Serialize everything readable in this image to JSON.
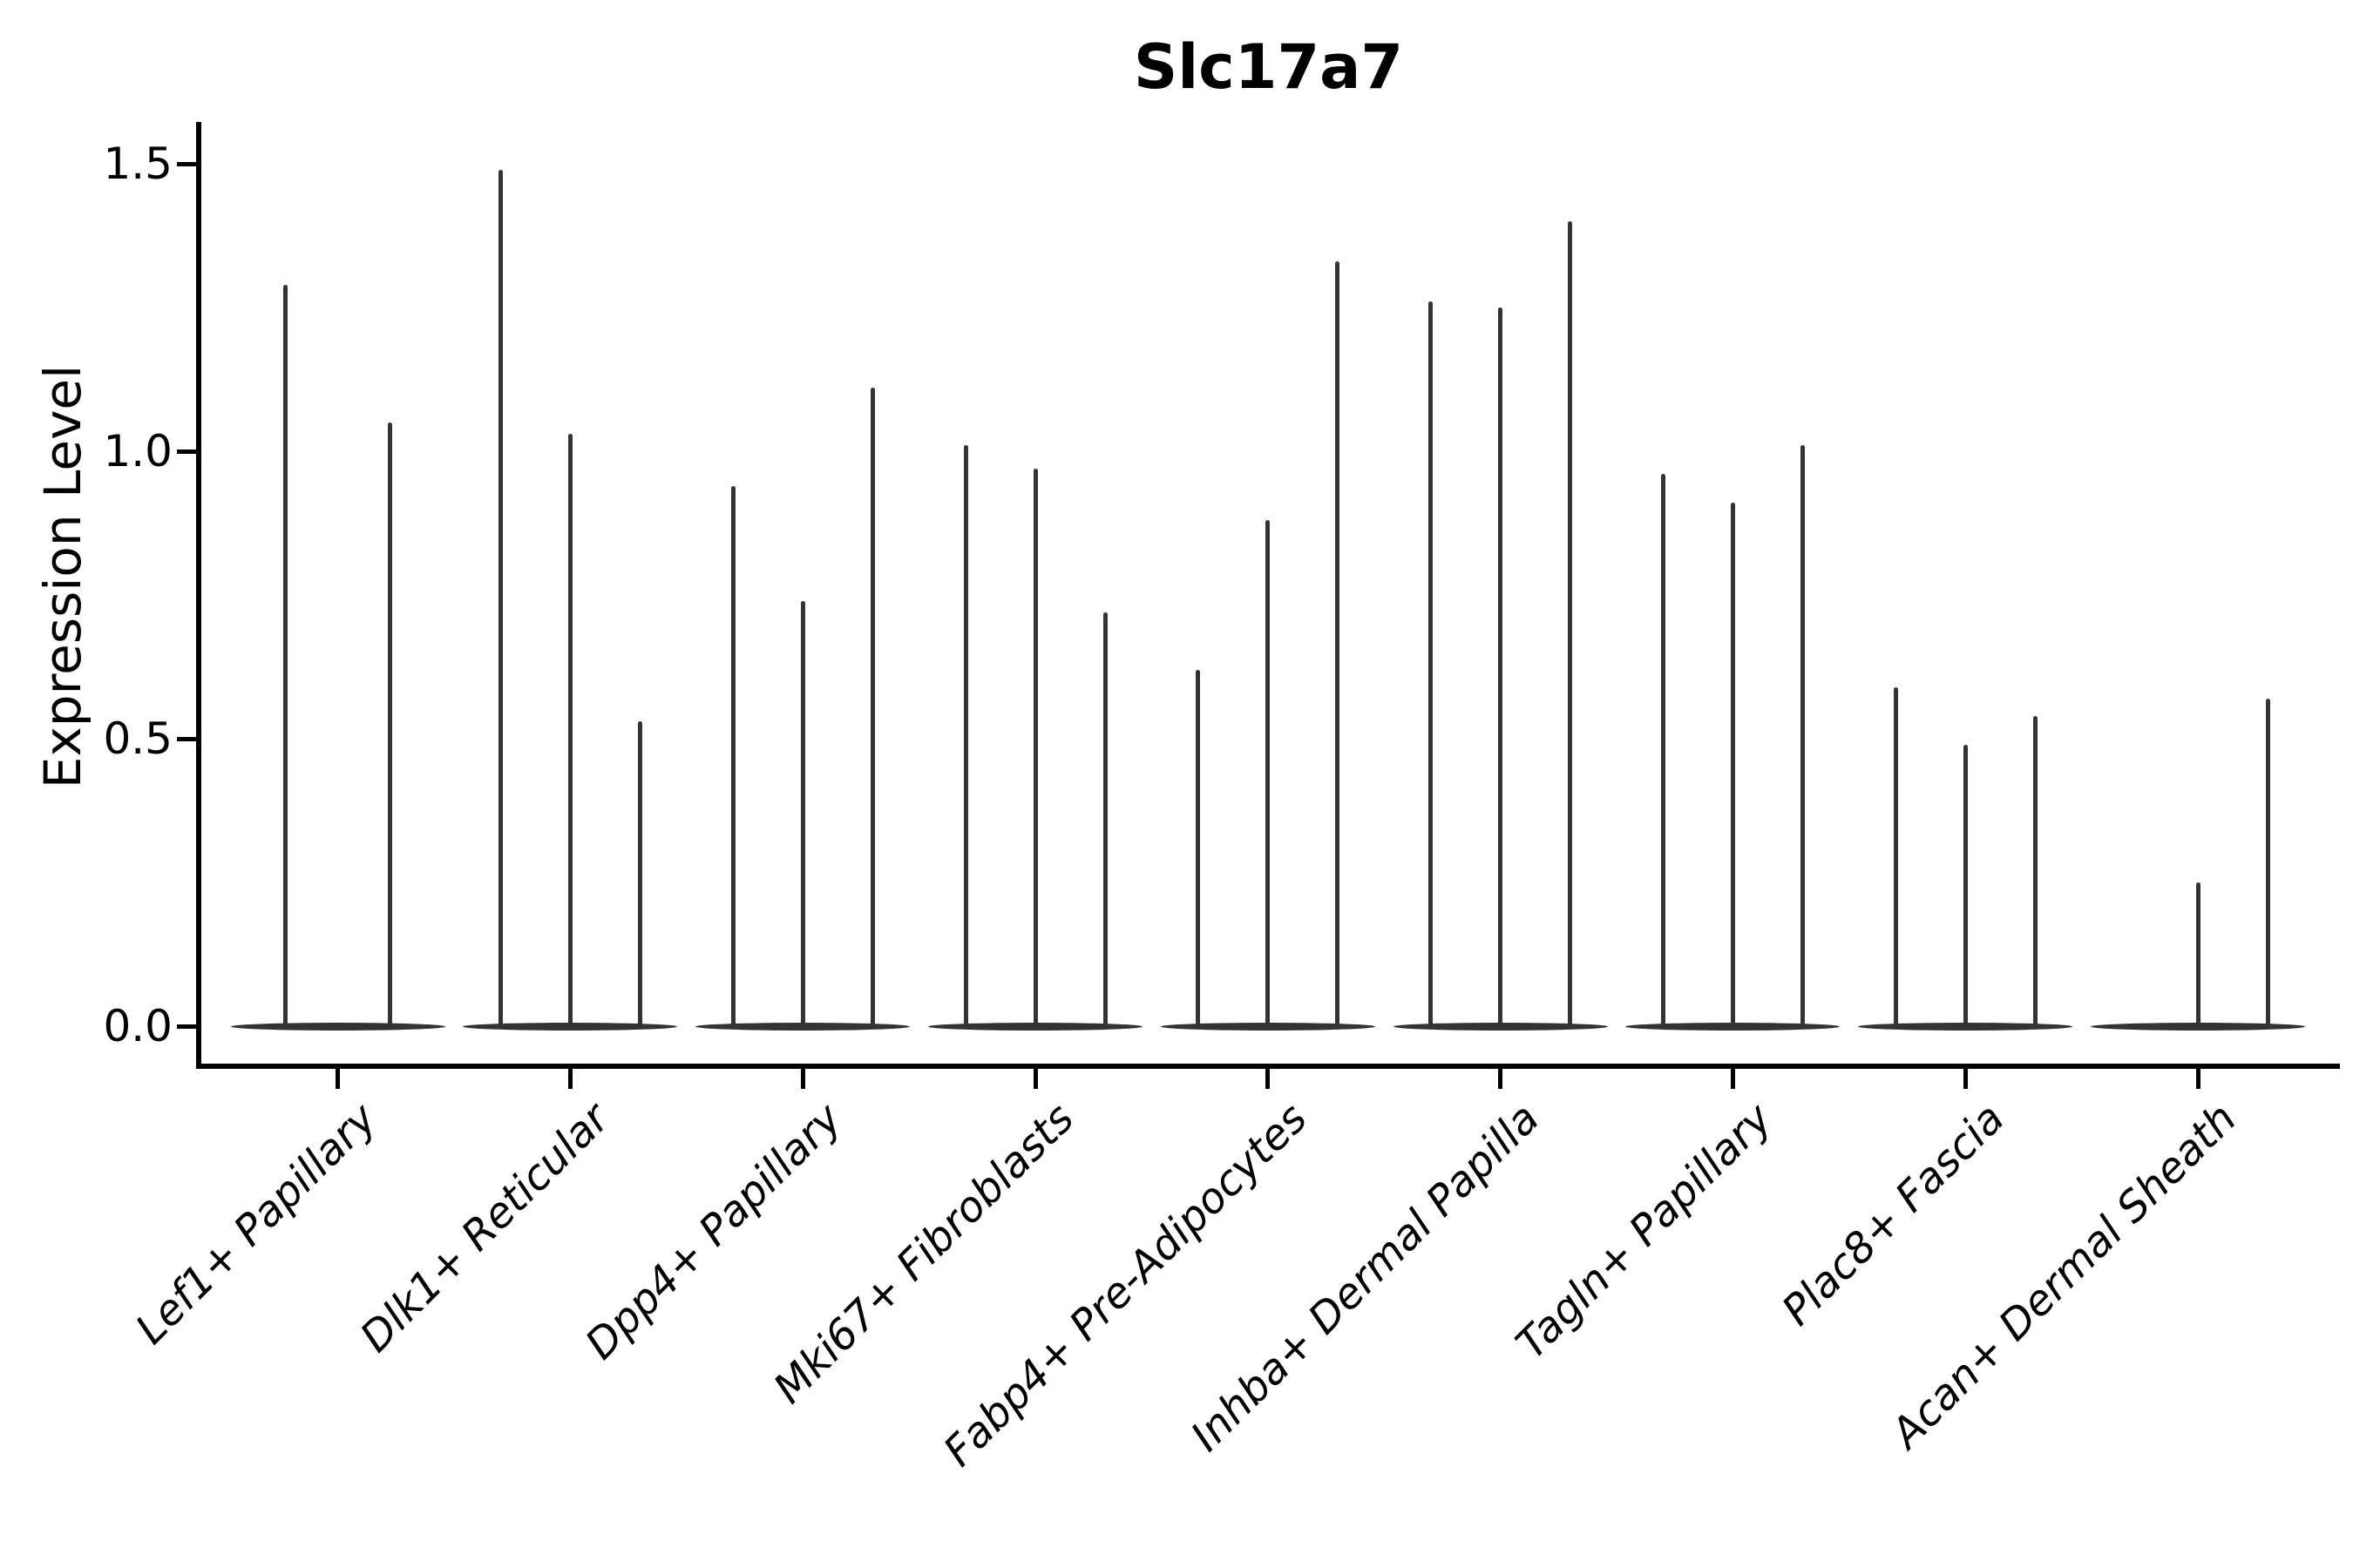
{
  "chart_data": {
    "type": "violin",
    "title": "Slc17a7",
    "xlabel": "",
    "ylabel": "Expression Level",
    "ylim": [
      0,
      1.55
    ],
    "yticks": [
      0.0,
      0.5,
      1.0,
      1.5
    ],
    "ytick_labels": [
      "0.0",
      "0.5",
      "1.0",
      "1.5"
    ],
    "grid": false,
    "legend": "none",
    "xtick_rotation": 45,
    "xtick_style": "italic",
    "description": "Violin plot of Slc17a7 expression; each cell-type category shows 2-3 very thin violins (flat base at 0 with a narrow spike up to the max expression value).",
    "categories": [
      "Lef1+ Papillary",
      "Dlk1+ Reticular",
      "Dpp4+ Papillary",
      "Mki67+ Fibroblasts",
      "Fabp4+ Pre-Adipocytes",
      "Inhba+ Dermal Papilla",
      "Tagln+ Papillary",
      "Plac8+ Fascia",
      "Acan+ Dermal Sheath"
    ],
    "violins": [
      {
        "category": "Lef1+ Papillary",
        "spike_maxima": [
          1.29,
          1.05
        ]
      },
      {
        "category": "Dlk1+ Reticular",
        "spike_maxima": [
          1.49,
          1.03,
          0.53
        ]
      },
      {
        "category": "Dpp4+ Papillary",
        "spike_maxima": [
          0.94,
          0.74,
          1.11
        ]
      },
      {
        "category": "Mki67+ Fibroblasts",
        "spike_maxima": [
          1.01,
          0.97,
          0.72
        ]
      },
      {
        "category": "Fabp4+ Pre-Adipocytes",
        "spike_maxima": [
          0.62,
          0.88,
          1.33
        ]
      },
      {
        "category": "Inhba+ Dermal Papilla",
        "spike_maxima": [
          1.26,
          1.25,
          1.4
        ]
      },
      {
        "category": "Tagln+ Papillary",
        "spike_maxima": [
          0.96,
          0.91,
          1.01
        ]
      },
      {
        "category": "Plac8+ Fascia",
        "spike_maxima": [
          0.59,
          0.49,
          0.54
        ]
      },
      {
        "category": "Acan+ Dermal Sheath",
        "spike_maxima": [
          0.0,
          0.25,
          0.57
        ]
      }
    ],
    "colors": {
      "violin": "#333333",
      "axis": "#000000",
      "text": "#000000",
      "background": "#ffffff"
    }
  }
}
